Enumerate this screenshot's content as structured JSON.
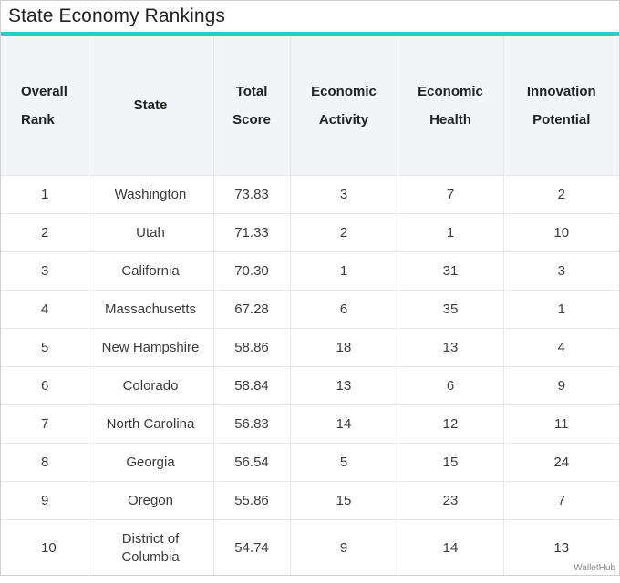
{
  "title": "State Economy Rankings",
  "headers": {
    "rank": [
      "Overall",
      "Rank"
    ],
    "state": [
      "State"
    ],
    "total": [
      "Total",
      "Score"
    ],
    "activity": [
      "Economic",
      "Activity"
    ],
    "health": [
      "Economic",
      "Health"
    ],
    "innovation": [
      "Innovation",
      "Potential"
    ]
  },
  "rows": [
    {
      "rank": "1",
      "state": "Washington",
      "score": "73.83",
      "activity": "3",
      "health": "7",
      "innovation": "2"
    },
    {
      "rank": "2",
      "state": "Utah",
      "score": "71.33",
      "activity": "2",
      "health": "1",
      "innovation": "10"
    },
    {
      "rank": "3",
      "state": "California",
      "score": "70.30",
      "activity": "1",
      "health": "31",
      "innovation": "3"
    },
    {
      "rank": "4",
      "state": "Massachusetts",
      "score": "67.28",
      "activity": "6",
      "health": "35",
      "innovation": "1"
    },
    {
      "rank": "5",
      "state": "New Hampshire",
      "score": "58.86",
      "activity": "18",
      "health": "13",
      "innovation": "4"
    },
    {
      "rank": "6",
      "state": "Colorado",
      "score": "58.84",
      "activity": "13",
      "health": "6",
      "innovation": "9"
    },
    {
      "rank": "7",
      "state": "North Carolina",
      "score": "56.83",
      "activity": "14",
      "health": "12",
      "innovation": "11"
    },
    {
      "rank": "8",
      "state": "Georgia",
      "score": "56.54",
      "activity": "5",
      "health": "15",
      "innovation": "24"
    },
    {
      "rank": "9",
      "state": "Oregon",
      "score": "55.86",
      "activity": "15",
      "health": "23",
      "innovation": "7"
    },
    {
      "rank": "10",
      "state": [
        "District of",
        "Columbia"
      ],
      "score": "54.74",
      "activity": "9",
      "health": "14",
      "innovation": "13"
    }
  ],
  "brand": "WalletHub",
  "colors": {
    "accent": "#2ec9c9",
    "header_bg": "#f2f5f8"
  }
}
